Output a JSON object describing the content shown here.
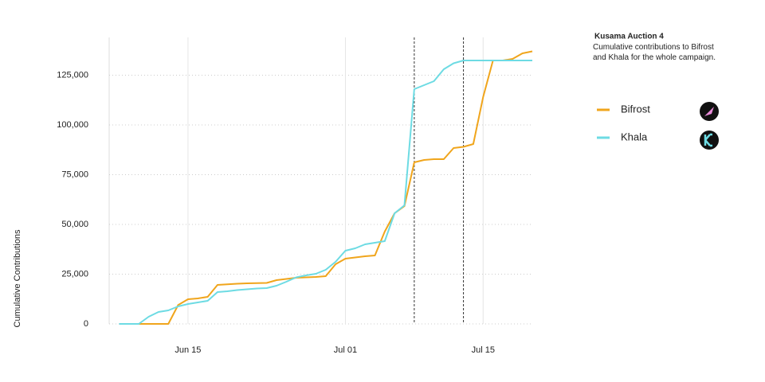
{
  "chart_data": {
    "type": "line",
    "title": "Kusama Auction 4",
    "subtitle": "Cumulative contributions to Bifrost and Khala for the whole campaign.",
    "y_label": "Cumulative Contributions",
    "x": [
      "Jun 08",
      "Jun 09",
      "Jun 10",
      "Jun 11",
      "Jun 12",
      "Jun 13",
      "Jun 14",
      "Jun 15",
      "Jun 16",
      "Jun 17",
      "Jun 18",
      "Jun 19",
      "Jun 20",
      "Jun 21",
      "Jun 22",
      "Jun 23",
      "Jun 24",
      "Jun 25",
      "Jun 26",
      "Jun 27",
      "Jun 28",
      "Jun 29",
      "Jun 30",
      "Jul 01",
      "Jul 02",
      "Jul 03",
      "Jul 04",
      "Jul 05",
      "Jul 06",
      "Jul 07",
      "Jul 08",
      "Jul 09",
      "Jul 10",
      "Jul 11",
      "Jul 12",
      "Jul 13",
      "Jul 14",
      "Jul 15",
      "Jul 16",
      "Jul 17",
      "Jul 18",
      "Jul 19",
      "Jul 20"
    ],
    "series": [
      {
        "name": "Bifrost",
        "color": "#f0a51c",
        "values": [
          0,
          0,
          0,
          0,
          0,
          0,
          9500,
          12400,
          12800,
          13600,
          19600,
          19900,
          20200,
          20400,
          20500,
          20600,
          22000,
          22600,
          23200,
          23400,
          23600,
          24000,
          30000,
          32800,
          33400,
          34000,
          34400,
          46400,
          55600,
          59200,
          81200,
          82400,
          82800,
          82800,
          88400,
          89000,
          90400,
          114000,
          132400,
          132400,
          133200,
          136000,
          137000
        ]
      },
      {
        "name": "Khala",
        "color": "#6ddbe3",
        "values": [
          0,
          0,
          0,
          3600,
          6000,
          6800,
          8800,
          10000,
          10800,
          11600,
          16000,
          16400,
          17000,
          17400,
          17800,
          18000,
          19200,
          21200,
          23400,
          24400,
          25200,
          27200,
          31200,
          36800,
          38000,
          40000,
          40800,
          41600,
          55600,
          59600,
          118000,
          120000,
          122000,
          128000,
          131000,
          132400,
          132400,
          132400,
          132400,
          132400,
          132400,
          132400,
          132400
        ]
      }
    ],
    "xticks": [
      "Jun 15",
      "Jul 01",
      "Jul 15"
    ],
    "markers": [
      "Jul 08",
      "Jul 13"
    ],
    "ylim": [
      0,
      144000
    ],
    "yticks": [
      0,
      {
        "value": 25000,
        "label": "25,000"
      },
      {
        "value": 50000,
        "label": "50,000"
      },
      {
        "value": 75000,
        "label": "75,000"
      },
      {
        "value": 100000,
        "label": "100,000"
      },
      {
        "value": 125000,
        "label": "125,000"
      }
    ],
    "grid": true
  }
}
